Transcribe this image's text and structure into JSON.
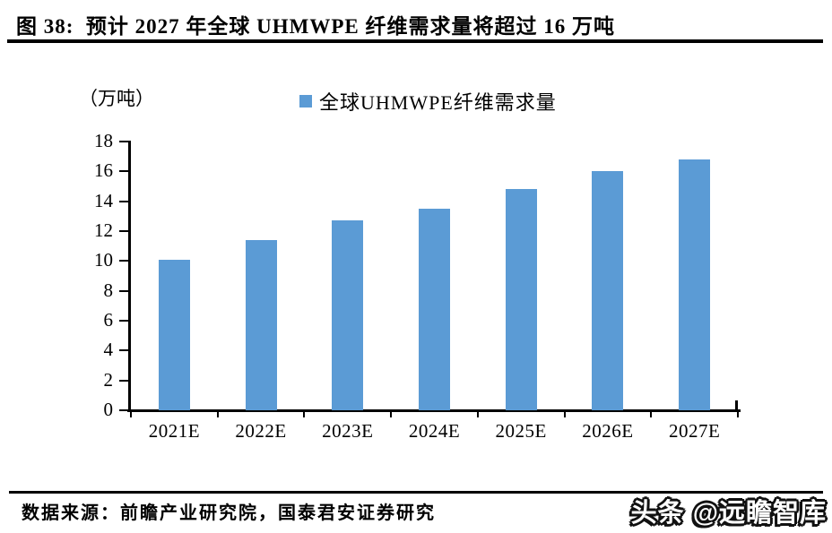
{
  "figure": {
    "title": "图 38:  预计 2027 年全球 UHMWPE 纤维需求量将超过 16 万吨",
    "unit_label": "（万吨）",
    "legend_label": "全球UHMWPE纤维需求量",
    "source": "数据来源：前瞻产业研究院，国泰君安证券研究",
    "watermark": "头条 @远瞻智库"
  },
  "colors": {
    "bar": "#5B9BD5",
    "axis": "#000000"
  },
  "chart_data": {
    "type": "bar",
    "title": "预计2027年全球UHMWPE纤维需求量将超过16万吨",
    "series_name": "全球UHMWPE纤维需求量",
    "categories": [
      "2021E",
      "2022E",
      "2023E",
      "2024E",
      "2025E",
      "2026E",
      "2027E"
    ],
    "values": [
      10.1,
      11.4,
      12.7,
      13.5,
      14.8,
      16.0,
      16.8
    ],
    "xlabel": "",
    "ylabel": "万吨",
    "ylim": [
      0,
      18
    ],
    "yticks": [
      0,
      2,
      4,
      6,
      8,
      10,
      12,
      14,
      16,
      18
    ],
    "grid": false,
    "legend_position": "top"
  }
}
